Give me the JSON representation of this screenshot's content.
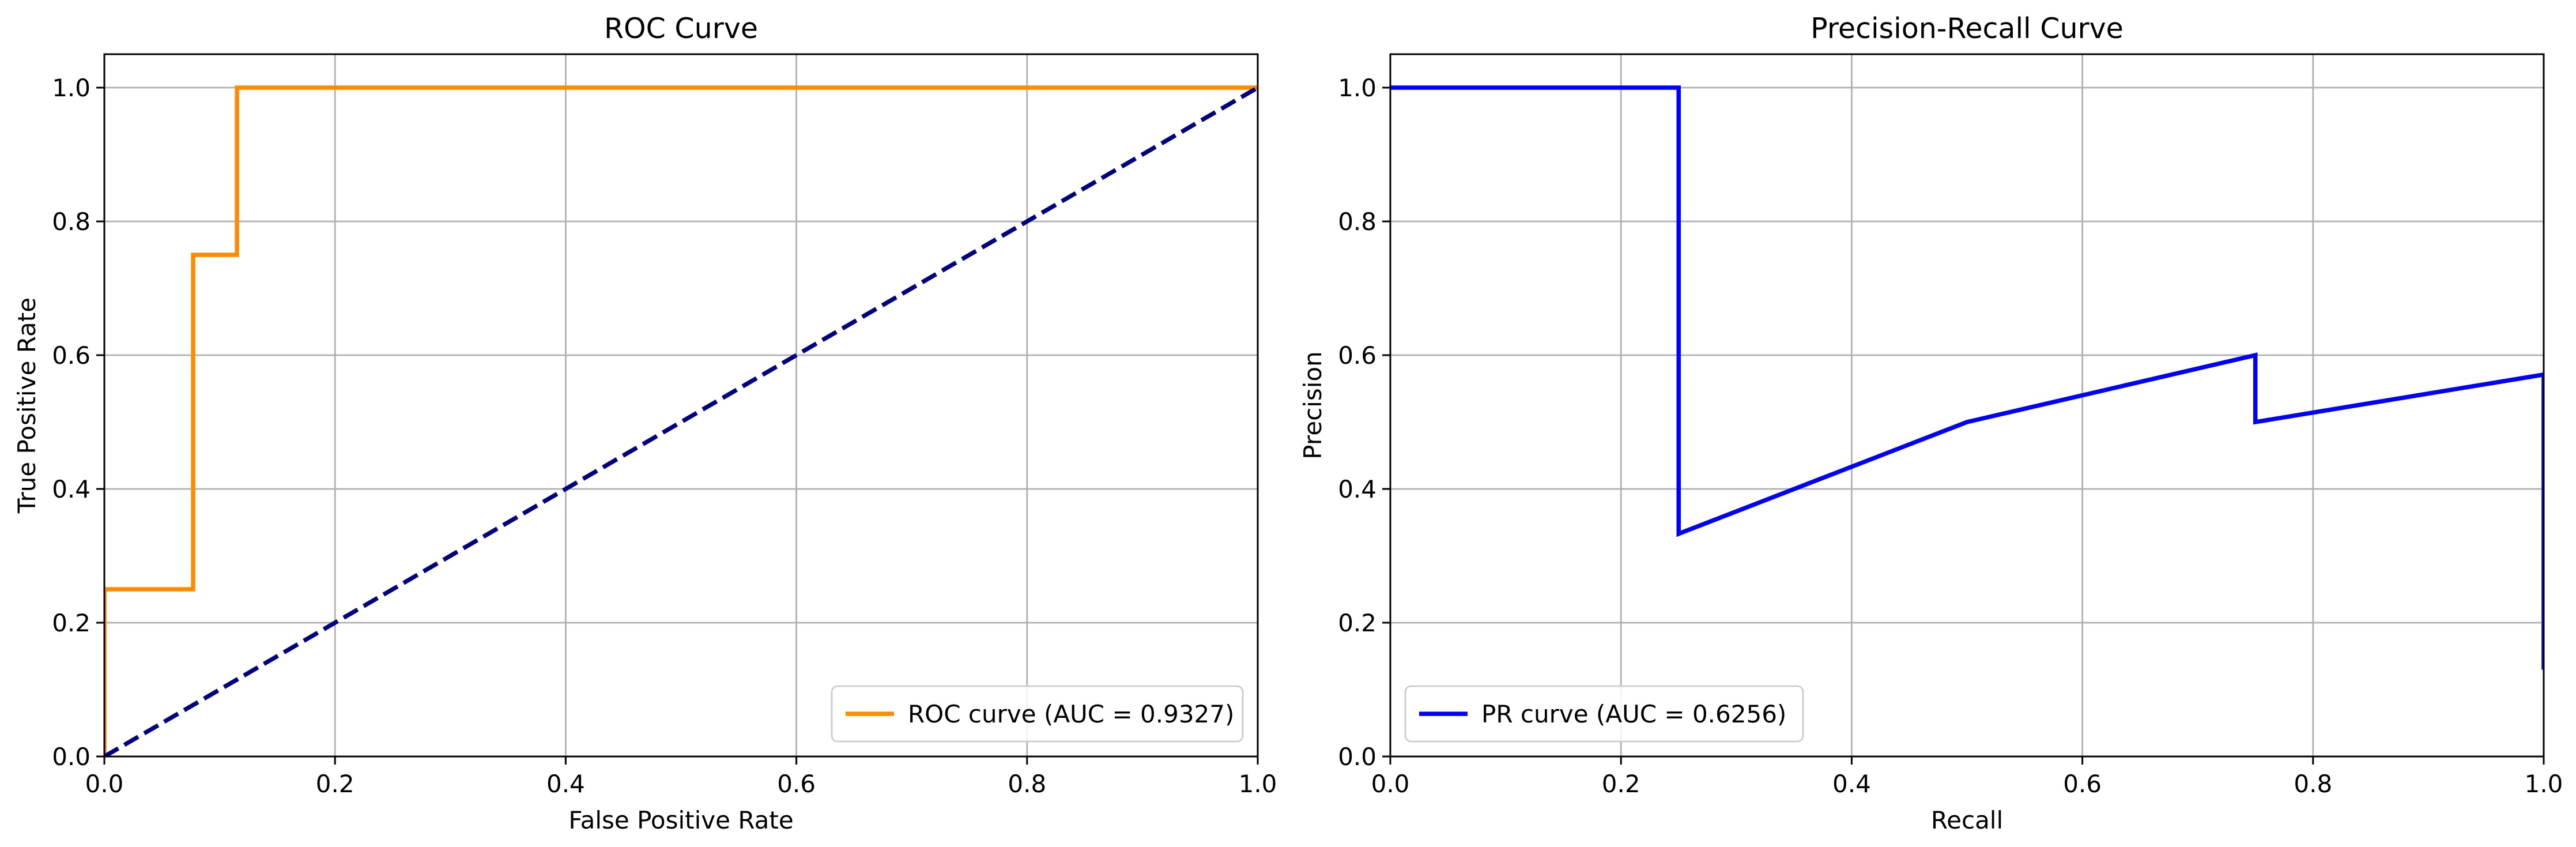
{
  "chart_data": [
    {
      "type": "line",
      "title": "ROC Curve",
      "xlabel": "False Positive Rate",
      "ylabel": "True Positive Rate",
      "xlim": [
        0.0,
        1.0
      ],
      "ylim": [
        0.0,
        1.05
      ],
      "xticks": [
        0.0,
        0.2,
        0.4,
        0.6,
        0.8,
        1.0
      ],
      "yticks": [
        0.0,
        0.2,
        0.4,
        0.6,
        0.8,
        1.0
      ],
      "tick_labels_x": [
        "0.0",
        "0.2",
        "0.4",
        "0.6",
        "0.8",
        "1.0"
      ],
      "tick_labels_y": [
        "0.0",
        "0.2",
        "0.4",
        "0.6",
        "0.8",
        "1.0"
      ],
      "grid": true,
      "legend_position": "lower-right",
      "series": [
        {
          "name": "ROC curve (AUC = 0.9327)",
          "color": "#ff8c00",
          "style": "solid",
          "in_legend": true,
          "x": [
            0.0,
            0.0,
            0.077,
            0.077,
            0.115,
            0.115,
            1.0
          ],
          "y": [
            0.0,
            0.25,
            0.25,
            0.75,
            0.75,
            1.0,
            1.0
          ]
        },
        {
          "name": "",
          "color": "#000080",
          "style": "dashed",
          "in_legend": false,
          "x": [
            0.0,
            1.0
          ],
          "y": [
            0.0,
            1.0
          ]
        }
      ]
    },
    {
      "type": "line",
      "title": "Precision-Recall Curve",
      "xlabel": "Recall",
      "ylabel": "Precision",
      "xlim": [
        0.0,
        1.0
      ],
      "ylim": [
        0.0,
        1.05
      ],
      "xticks": [
        0.0,
        0.2,
        0.4,
        0.6,
        0.8,
        1.0
      ],
      "yticks": [
        0.0,
        0.2,
        0.4,
        0.6,
        0.8,
        1.0
      ],
      "tick_labels_x": [
        "0.0",
        "0.2",
        "0.4",
        "0.6",
        "0.8",
        "1.0"
      ],
      "tick_labels_y": [
        "0.0",
        "0.2",
        "0.4",
        "0.6",
        "0.8",
        "1.0"
      ],
      "grid": true,
      "legend_position": "lower-left",
      "series": [
        {
          "name": "PR curve (AUC = 0.6256)",
          "color": "#0000ff",
          "style": "solid",
          "in_legend": true,
          "x": [
            0.0,
            0.25,
            0.25,
            0.5,
            0.75,
            0.75,
            1.0,
            1.0
          ],
          "y": [
            1.0,
            1.0,
            0.333,
            0.5,
            0.6,
            0.5,
            0.571,
            0.133
          ]
        }
      ]
    }
  ]
}
